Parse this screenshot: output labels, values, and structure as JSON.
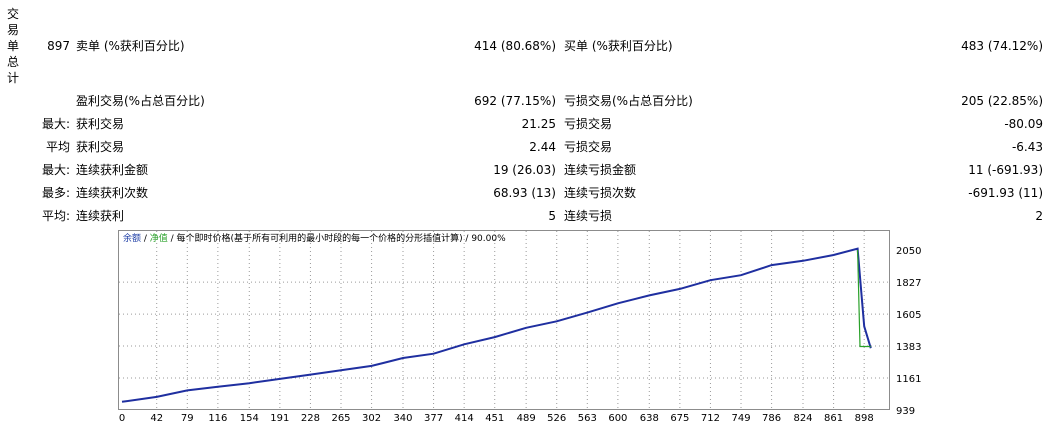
{
  "section_title": [
    "交",
    "易",
    "单",
    "总",
    "计"
  ],
  "summary": {
    "total_count": "897",
    "sell_label": "卖单 (%获利百分比)",
    "sell_value": "414 (80.68%)",
    "buy_label": "买单 (%获利百分比)",
    "buy_value": "483 (74.12%)"
  },
  "rows": [
    {
      "prefix": "",
      "left_label": "盈利交易(%占总百分比)",
      "left_value": "692 (77.15%)",
      "right_label": "亏损交易(%占总百分比)",
      "right_value": "205 (22.85%)"
    },
    {
      "prefix": "最大:",
      "left_label": "获利交易",
      "left_value": "21.25",
      "right_label": "亏损交易",
      "right_value": "-80.09"
    },
    {
      "prefix": "平均",
      "left_label": "获利交易",
      "left_value": "2.44",
      "right_label": "亏损交易",
      "right_value": "-6.43"
    },
    {
      "prefix": "最大:",
      "left_label": "连续获利金额",
      "left_value": "19 (26.03)",
      "right_label": "连续亏损金额",
      "right_value": "11 (-691.93)"
    },
    {
      "prefix": "最多:",
      "left_label": "连续获利次数",
      "left_value": "68.93 (13)",
      "right_label": "连续亏损次数",
      "right_value": "-691.93 (11)"
    },
    {
      "prefix": "平均:",
      "left_label": "连续获利",
      "left_value": "5",
      "right_label": "连续亏损",
      "right_value": "2"
    }
  ],
  "legend": {
    "balance": "余额",
    "sep1": " / ",
    "equity": "净值",
    "rest": " / 每个即时价格(基于所有可利用的最小时段的每一个价格的分形插值计算) / 90.00%"
  },
  "colors": {
    "balance": "#1f2fa0",
    "equity": "#2aa12a",
    "grid": "#9a9a9a"
  },
  "chart_data": {
    "type": "line",
    "x_ticks": [
      "0",
      "42",
      "79",
      "116",
      "154",
      "191",
      "228",
      "265",
      "302",
      "340",
      "377",
      "414",
      "451",
      "489",
      "526",
      "563",
      "600",
      "638",
      "675",
      "712",
      "749",
      "786",
      "824",
      "861",
      "898"
    ],
    "y_ticks": [
      "2050",
      "1827",
      "1605",
      "1383",
      "1161",
      "939"
    ],
    "ylim": [
      939,
      2050
    ],
    "xlim": [
      0,
      922
    ],
    "series": [
      {
        "name": "余额",
        "color": "#1f2fa0",
        "points": [
          [
            0,
            996
          ],
          [
            42,
            1030
          ],
          [
            79,
            1075
          ],
          [
            116,
            1100
          ],
          [
            154,
            1125
          ],
          [
            191,
            1155
          ],
          [
            228,
            1185
          ],
          [
            265,
            1215
          ],
          [
            302,
            1245
          ],
          [
            340,
            1300
          ],
          [
            377,
            1330
          ],
          [
            414,
            1395
          ],
          [
            451,
            1445
          ],
          [
            489,
            1510
          ],
          [
            526,
            1555
          ],
          [
            563,
            1615
          ],
          [
            600,
            1680
          ],
          [
            638,
            1735
          ],
          [
            675,
            1780
          ],
          [
            712,
            1840
          ],
          [
            749,
            1875
          ],
          [
            786,
            1945
          ],
          [
            824,
            1975
          ],
          [
            861,
            2015
          ],
          [
            890,
            2060
          ],
          [
            898,
            1520
          ],
          [
            906,
            1368
          ]
        ]
      },
      {
        "name": "净值",
        "color": "#2aa12a",
        "points": [
          [
            890,
            2050
          ],
          [
            893,
            1380
          ],
          [
            906,
            1380
          ]
        ]
      }
    ]
  }
}
